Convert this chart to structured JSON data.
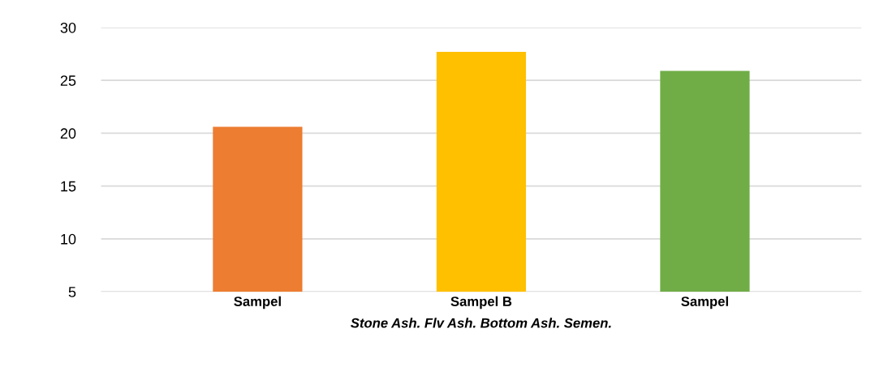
{
  "chart_data": {
    "type": "bar",
    "xlabel": "Stone Ash. Flv Ash. Bottom Ash. Semen.",
    "categories": [
      "Sampel",
      "Sampel B",
      "Sampel"
    ],
    "values": [
      20.6,
      27.7,
      25.9
    ],
    "colors": [
      "#ed7d31",
      "#ffc000",
      "#70ad47"
    ],
    "ylim": [
      5,
      30
    ],
    "yticks": [
      5,
      10,
      15,
      20,
      25,
      30
    ],
    "grid": "y"
  }
}
